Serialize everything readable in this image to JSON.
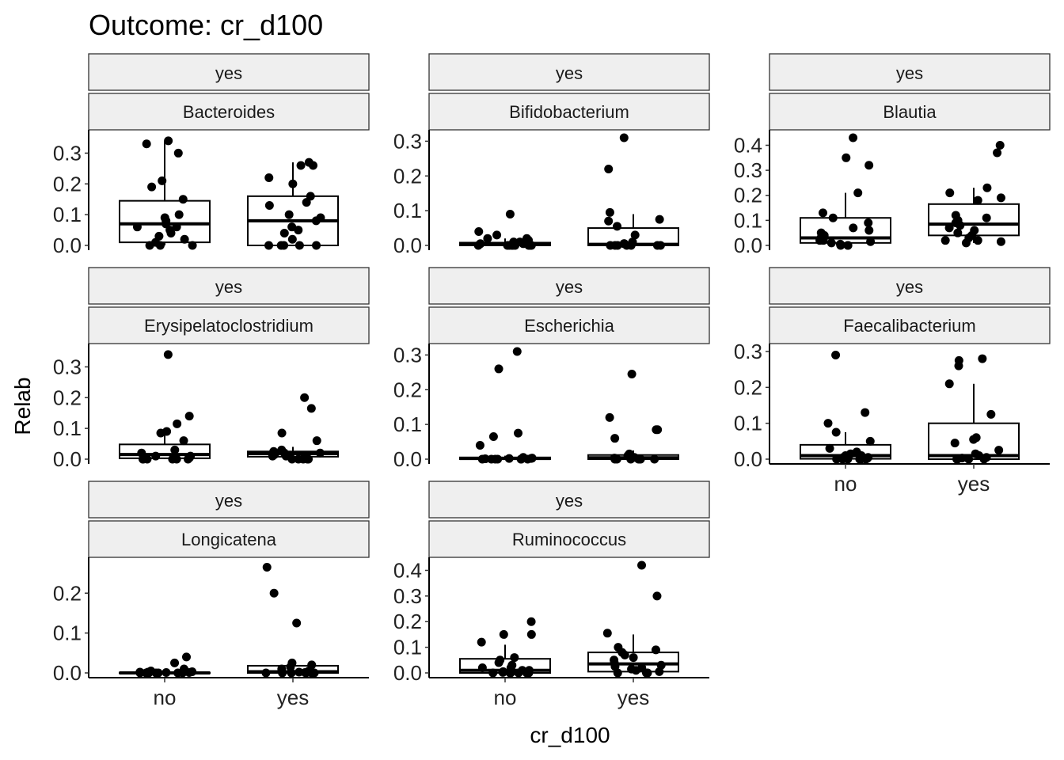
{
  "title": "Outcome: cr_d100",
  "chart_data": {
    "type": "boxplot",
    "title": "Outcome: cr_d100",
    "xlabel": "cr_d100",
    "ylabel": "Relab",
    "categories": [
      "no",
      "yes"
    ],
    "grid": false,
    "panels": [
      {
        "strip_top": "yes",
        "strip_bottom": "Bacteroides",
        "ylim": [
          0,
          0.35
        ],
        "yticks": [
          "0.0",
          "0.1",
          "0.2",
          "0.3"
        ],
        "show_x_axis": false,
        "groups": [
          {
            "category": "no",
            "q1": 0.01,
            "median": 0.07,
            "q3": 0.145,
            "whisker_low": 0.0,
            "whisker_high": 0.34,
            "points": [
              0.33,
              0.3,
              0.34,
              0.21,
              0.19,
              0.15,
              0.1,
              0.09,
              0.08,
              0.07,
              0.06,
              0.05,
              0.04,
              0.03,
              0.02,
              0.01,
              0.0,
              0.0,
              0.0,
              0.06
            ]
          },
          {
            "category": "yes",
            "q1": 0.0,
            "median": 0.08,
            "q3": 0.16,
            "whisker_low": 0.0,
            "whisker_high": 0.27,
            "points": [
              0.27,
              0.26,
              0.26,
              0.22,
              0.2,
              0.16,
              0.14,
              0.13,
              0.1,
              0.09,
              0.08,
              0.06,
              0.04,
              0.02,
              0.0,
              0.0,
              0.0,
              0.0,
              0.0,
              0.05
            ]
          }
        ]
      },
      {
        "strip_top": "yes",
        "strip_bottom": "Bifidobacterium",
        "ylim": [
          0,
          0.31
        ],
        "yticks": [
          "0.0",
          "0.1",
          "0.2",
          "0.3"
        ],
        "show_x_axis": false,
        "groups": [
          {
            "category": "no",
            "q1": 0.0,
            "median": 0.003,
            "q3": 0.008,
            "whisker_low": 0.0,
            "whisker_high": 0.02,
            "points": [
              0.09,
              0.04,
              0.03,
              0.02,
              0.02,
              0.015,
              0.01,
              0.01,
              0.005,
              0.0,
              0.0,
              0.0,
              0.0,
              0.0,
              0.0,
              0.0,
              0.0,
              0.0,
              0.005,
              0.01
            ]
          },
          {
            "category": "yes",
            "q1": 0.0,
            "median": 0.003,
            "q3": 0.05,
            "whisker_low": 0.0,
            "whisker_high": 0.09,
            "points": [
              0.31,
              0.22,
              0.095,
              0.075,
              0.07,
              0.055,
              0.03,
              0.01,
              0.005,
              0.0,
              0.0,
              0.0,
              0.0,
              0.0,
              0.0,
              0.0,
              0.005
            ]
          }
        ]
      },
      {
        "strip_top": "yes",
        "strip_bottom": "Blautia",
        "ylim": [
          0,
          0.43
        ],
        "yticks": [
          "0.0",
          "0.1",
          "0.2",
          "0.3",
          "0.4"
        ],
        "show_x_axis": false,
        "groups": [
          {
            "category": "no",
            "q1": 0.01,
            "median": 0.03,
            "q3": 0.11,
            "whisker_low": 0.0,
            "whisker_high": 0.21,
            "points": [
              0.43,
              0.35,
              0.32,
              0.21,
              0.13,
              0.11,
              0.09,
              0.07,
              0.06,
              0.05,
              0.04,
              0.03,
              0.02,
              0.01,
              0.0,
              0.0,
              0.0,
              0.005,
              0.015,
              0.02
            ]
          },
          {
            "category": "yes",
            "q1": 0.04,
            "median": 0.085,
            "q3": 0.165,
            "whisker_low": 0.01,
            "whisker_high": 0.23,
            "points": [
              0.4,
              0.37,
              0.23,
              0.21,
              0.19,
              0.18,
              0.12,
              0.11,
              0.1,
              0.09,
              0.08,
              0.07,
              0.06,
              0.05,
              0.04,
              0.03,
              0.02,
              0.01,
              0.015,
              0.02
            ]
          }
        ]
      },
      {
        "strip_top": "yes",
        "strip_bottom": "Erysipelatoclostridium",
        "ylim": [
          0,
          0.35
        ],
        "yticks": [
          "0.0",
          "0.1",
          "0.2",
          "0.3"
        ],
        "show_x_axis": false,
        "groups": [
          {
            "category": "no",
            "q1": 0.003,
            "median": 0.015,
            "q3": 0.048,
            "whisker_low": 0.0,
            "whisker_high": 0.09,
            "points": [
              0.34,
              0.14,
              0.115,
              0.09,
              0.085,
              0.06,
              0.03,
              0.02,
              0.01,
              0.005,
              0.0,
              0.0,
              0.0,
              0.0,
              0.0,
              0.0,
              0.005,
              0.01
            ]
          },
          {
            "category": "yes",
            "q1": 0.008,
            "median": 0.018,
            "q3": 0.025,
            "whisker_low": 0.0,
            "whisker_high": 0.04,
            "points": [
              0.2,
              0.165,
              0.085,
              0.06,
              0.03,
              0.025,
              0.02,
              0.015,
              0.01,
              0.005,
              0.0,
              0.0,
              0.0,
              0.0,
              0.0,
              0.01,
              0.02
            ]
          }
        ]
      },
      {
        "strip_top": "yes",
        "strip_bottom": "Escherichia",
        "ylim": [
          0,
          0.31
        ],
        "yticks": [
          "0.0",
          "0.1",
          "0.2",
          "0.3"
        ],
        "show_x_axis": false,
        "groups": [
          {
            "category": "no",
            "q1": 0.0,
            "median": 0.002,
            "q3": 0.005,
            "whisker_low": 0.0,
            "whisker_high": 0.01,
            "points": [
              0.31,
              0.26,
              0.075,
              0.065,
              0.04,
              0.005,
              0.003,
              0.002,
              0.0,
              0.0,
              0.0,
              0.0,
              0.0,
              0.0,
              0.0,
              0.001,
              0.002
            ]
          },
          {
            "category": "yes",
            "q1": 0.0,
            "median": 0.004,
            "q3": 0.012,
            "whisker_low": 0.0,
            "whisker_high": 0.025,
            "points": [
              0.245,
              0.12,
              0.085,
              0.085,
              0.06,
              0.015,
              0.01,
              0.005,
              0.0,
              0.0,
              0.0,
              0.0,
              0.0,
              0.0,
              0.0,
              0.003
            ]
          }
        ]
      },
      {
        "strip_top": "yes",
        "strip_bottom": "Faecalibacterium",
        "ylim": [
          0,
          0.3
        ],
        "yticks": [
          "0.0",
          "0.1",
          "0.2",
          "0.3"
        ],
        "show_x_axis": true,
        "groups": [
          {
            "category": "no",
            "q1": 0.001,
            "median": 0.01,
            "q3": 0.04,
            "whisker_low": 0.0,
            "whisker_high": 0.075,
            "points": [
              0.29,
              0.13,
              0.1,
              0.075,
              0.05,
              0.03,
              0.02,
              0.015,
              0.01,
              0.005,
              0.0,
              0.0,
              0.0,
              0.0,
              0.0,
              0.0,
              0.002,
              0.005,
              0.01
            ]
          },
          {
            "category": "yes",
            "q1": 0.0,
            "median": 0.01,
            "q3": 0.1,
            "whisker_low": 0.0,
            "whisker_high": 0.21,
            "points": [
              0.28,
              0.275,
              0.26,
              0.21,
              0.125,
              0.06,
              0.055,
              0.045,
              0.025,
              0.015,
              0.01,
              0.005,
              0.0,
              0.0,
              0.0,
              0.0,
              0.0,
              0.003
            ]
          }
        ]
      },
      {
        "strip_top": "yes",
        "strip_bottom": "Longicatena",
        "ylim": [
          0,
          0.27
        ],
        "yticks": [
          "0.0",
          "0.1",
          "0.2"
        ],
        "show_x_axis": true,
        "groups": [
          {
            "category": "no",
            "q1": 0.0,
            "median": 0.0,
            "q3": 0.001,
            "whisker_low": 0.0,
            "whisker_high": 0.002,
            "points": [
              0.04,
              0.025,
              0.01,
              0.005,
              0.003,
              0.002,
              0.001,
              0.0,
              0.0,
              0.0,
              0.0,
              0.0,
              0.0,
              0.0,
              0.001,
              0.002
            ]
          },
          {
            "category": "yes",
            "q1": 0.0,
            "median": 0.003,
            "q3": 0.018,
            "whisker_low": 0.0,
            "whisker_high": 0.03,
            "points": [
              0.265,
              0.2,
              0.125,
              0.025,
              0.02,
              0.015,
              0.01,
              0.005,
              0.002,
              0.0,
              0.0,
              0.0,
              0.0,
              0.0,
              0.0,
              0.001
            ]
          }
        ]
      },
      {
        "strip_top": "yes",
        "strip_bottom": "Ruminococcus",
        "ylim": [
          0,
          0.42
        ],
        "yticks": [
          "0.0",
          "0.1",
          "0.2",
          "0.3",
          "0.4"
        ],
        "show_x_axis": true,
        "groups": [
          {
            "category": "no",
            "q1": 0.0,
            "median": 0.01,
            "q3": 0.055,
            "whisker_low": 0.0,
            "whisker_high": 0.11,
            "points": [
              0.2,
              0.15,
              0.15,
              0.12,
              0.06,
              0.05,
              0.04,
              0.03,
              0.02,
              0.01,
              0.005,
              0.0,
              0.0,
              0.0,
              0.0,
              0.0,
              0.0,
              0.002,
              0.01,
              0.02
            ]
          },
          {
            "category": "yes",
            "q1": 0.005,
            "median": 0.035,
            "q3": 0.08,
            "whisker_low": 0.0,
            "whisker_high": 0.15,
            "points": [
              0.42,
              0.3,
              0.155,
              0.1,
              0.09,
              0.08,
              0.07,
              0.06,
              0.05,
              0.04,
              0.03,
              0.025,
              0.02,
              0.01,
              0.005,
              0.0,
              0.0,
              0.0,
              0.0,
              0.015
            ]
          }
        ]
      }
    ]
  }
}
